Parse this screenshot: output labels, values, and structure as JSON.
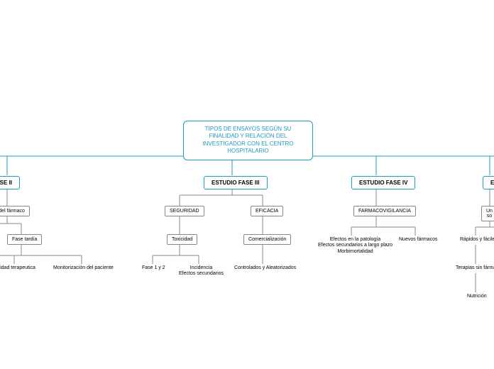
{
  "root": {
    "title": "TIPOS DE ENSAYOS SEGÚN SU FINALIDAD Y RELACIÓN DEL INVESTIGADOR CON EL CENTRO HOSPITALARIO",
    "border_color": "#1e9bbf",
    "text_color": "#1e9bbf",
    "fontsize": 8
  },
  "phases": {
    "p2": "O FASE II",
    "p3": "ESTUDIO FASE III",
    "p4": "ESTUDIO FASE IV",
    "p5": "ES"
  },
  "nodes": {
    "p2_a": "cto del fármaco",
    "p2_b": "Fase tardía",
    "p2_leaf1": "Utilidad terapeutica",
    "p2_leaf2": "Monitorización del paciente",
    "p3_a": "SEGURIDAD",
    "p3_b": "EFICACIA",
    "p3_a1": "Toxicidad",
    "p3_b1": "Comercialización",
    "p3_leaf1": "Fase 1 y 2",
    "p3_leaf2": "Incidencia\nEfectos secundarios",
    "p3_leaf3": "Controlados y Aleatorizados",
    "p4_a": "FARMACOVIGILANCIA",
    "p4_leaf1": "Efectos en la patología\nEfectos secundarios a largo plazo\nMorbimortalidad",
    "p4_leaf2": "Nuevos fármacos",
    "p5_a": "Un so",
    "p5_leaf1": "Rápidos y fáciles",
    "p5_leaf2": "Terapias sin fárma",
    "p5_leaf3": "Nutrición"
  },
  "colors": {
    "primary": "#1e9bbf",
    "gray": "#888888",
    "bg": "#ffffff"
  }
}
